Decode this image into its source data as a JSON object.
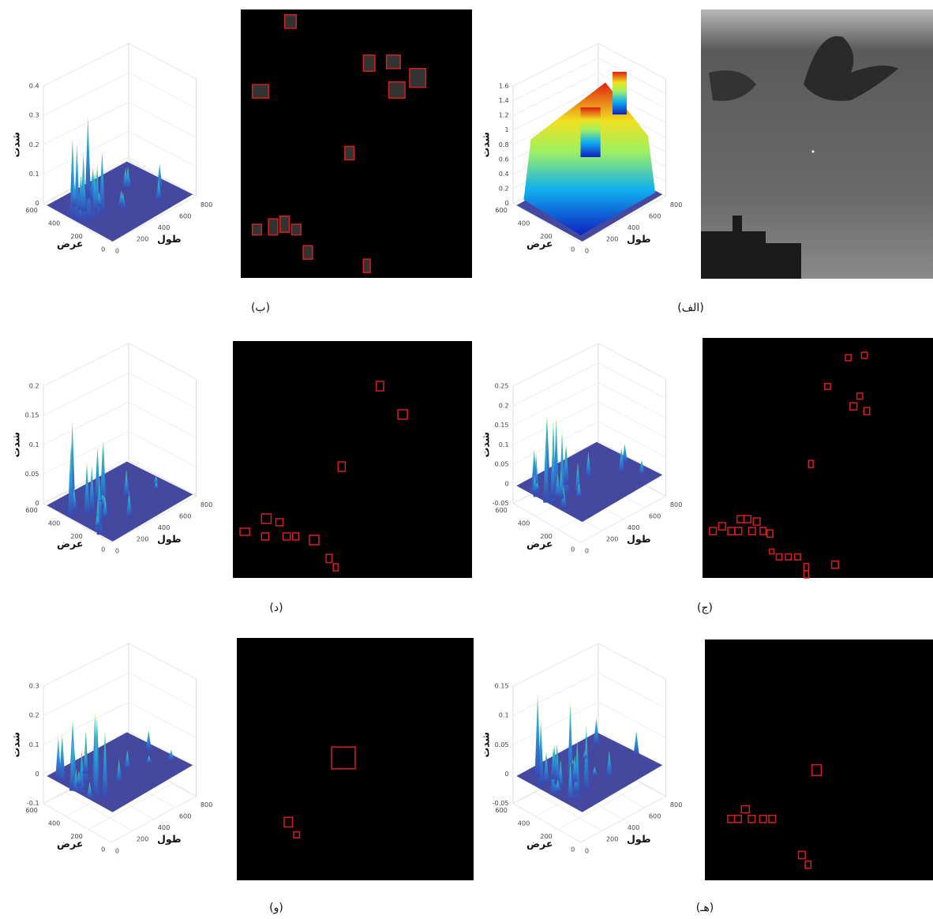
{
  "panels": [
    {
      "label": "(الف)",
      "plot": {
        "z_label": "شدت",
        "x_label": "طول",
        "y_label": "عرض",
        "zticks": [
          0,
          0.2,
          0.4,
          0.6,
          0.8,
          1,
          1.2,
          1.4,
          1.6
        ],
        "xticks": [
          0,
          200,
          400,
          600,
          800
        ],
        "yticks": [
          0,
          200,
          400,
          600
        ]
      }
    },
    {
      "label": "(ب)",
      "plot": {
        "z_label": "شدت",
        "x_label": "طول",
        "y_label": "عرض",
        "zticks": [
          0,
          0.1,
          0.2,
          0.3,
          0.4
        ],
        "xticks": [
          0,
          200,
          400,
          600,
          800
        ],
        "yticks": [
          0,
          200,
          400,
          600
        ]
      }
    },
    {
      "label": "(ج)",
      "plot": {
        "z_label": "شدت",
        "x_label": "طول",
        "y_label": "عرض",
        "zticks": [
          -0.05,
          0,
          0.05,
          0.1,
          0.15,
          0.2,
          0.25
        ],
        "xticks": [
          0,
          200,
          400,
          600,
          800
        ],
        "yticks": [
          0,
          200,
          400,
          600
        ]
      }
    },
    {
      "label": "(د)",
      "plot": {
        "z_label": "شدت",
        "x_label": "طول",
        "y_label": "عرض",
        "zticks": [
          0,
          0.05,
          0.1,
          0.15,
          0.2
        ],
        "xticks": [
          0,
          200,
          400,
          600,
          800
        ],
        "yticks": [
          0,
          200,
          400,
          600
        ]
      }
    },
    {
      "label": "(هـ)",
      "plot": {
        "z_label": "شدت",
        "x_label": "طول",
        "y_label": "عرض",
        "zticks": [
          -0.05,
          0,
          0.05,
          0.1,
          0.15
        ],
        "xticks": [
          0,
          200,
          400,
          600,
          800
        ],
        "yticks": [
          0,
          200,
          400,
          600
        ]
      }
    },
    {
      "label": "(و)",
      "plot": {
        "z_label": "شدت",
        "x_label": "طول",
        "y_label": "عرض",
        "zticks": [
          -0.1,
          0,
          0.1,
          0.2,
          0.3
        ],
        "xticks": [
          0,
          200,
          400,
          600,
          800
        ],
        "yticks": [
          0,
          200,
          400,
          600
        ]
      }
    }
  ]
}
